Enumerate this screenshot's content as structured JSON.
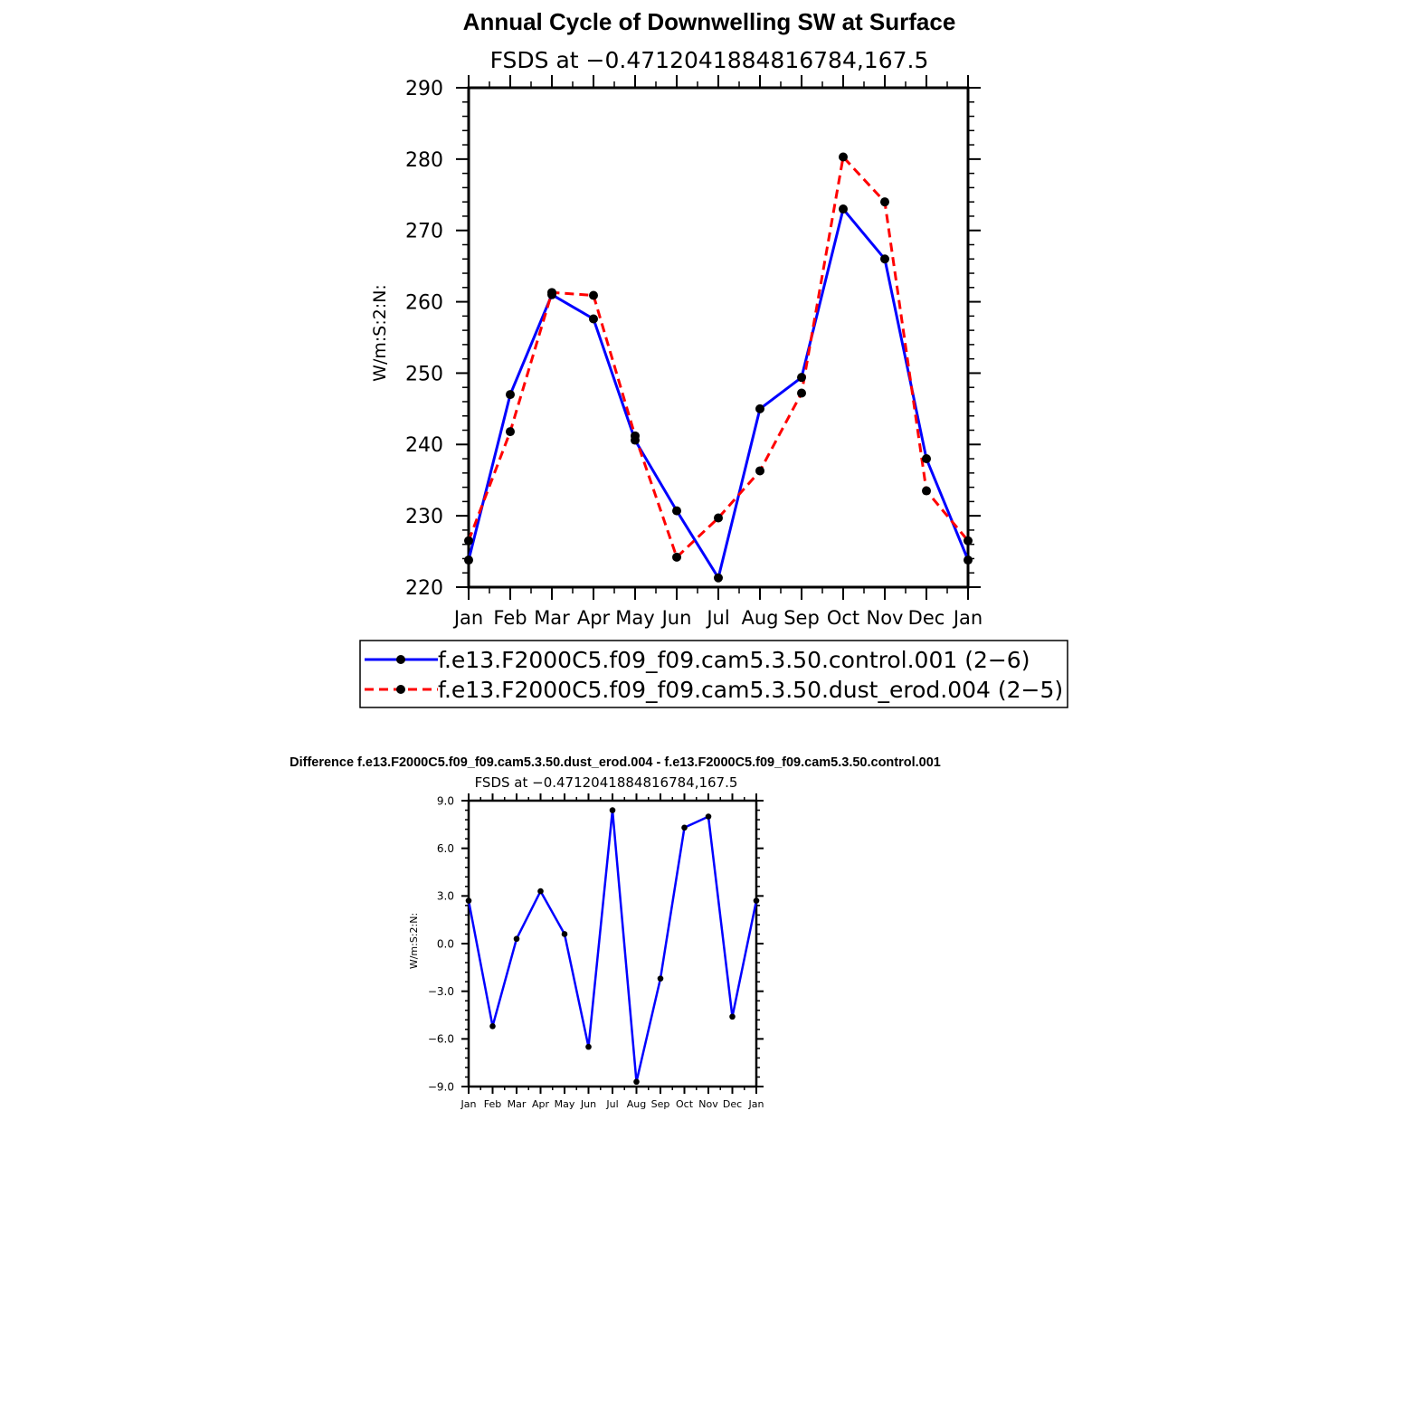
{
  "chart_data": [
    {
      "type": "line",
      "title": "Annual Cycle of Downwelling SW at Surface",
      "subtitle": "FSDS at −0.4712041884816784,167.5",
      "xlabel": "",
      "ylabel": "W/m:S:2:N:",
      "categories": [
        "Jan",
        "Feb",
        "Mar",
        "Apr",
        "May",
        "Jun",
        "Jul",
        "Aug",
        "Sep",
        "Oct",
        "Nov",
        "Dec",
        "Jan"
      ],
      "ylim": [
        220,
        290
      ],
      "yticks": [
        "220",
        "230",
        "240",
        "250",
        "260",
        "270",
        "280",
        "290"
      ],
      "series": [
        {
          "name": "f.e13.F2000C5.f09_f09.cam5.3.50.control.001 (2−6)",
          "color": "#0000ff",
          "style": "solid",
          "values": [
            223.8,
            247.0,
            261.0,
            257.6,
            240.6,
            230.7,
            221.3,
            245.0,
            249.4,
            273.0,
            266.0,
            238.0,
            223.8
          ]
        },
        {
          "name": "f.e13.F2000C5.f09_f09.cam5.3.50.dust_erod.004 (2−5)",
          "color": "#ff0000",
          "style": "dashed",
          "values": [
            226.5,
            241.8,
            261.3,
            260.9,
            241.2,
            224.2,
            229.7,
            236.3,
            247.2,
            280.3,
            274.0,
            233.5,
            226.5
          ]
        }
      ],
      "legend": "bottom"
    },
    {
      "type": "line",
      "title": "Difference f.e13.F2000C5.f09_f09.cam5.3.50.dust_erod.004 - f.e13.F2000C5.f09_f09.cam5.3.50.control.001",
      "subtitle": "FSDS at −0.4712041884816784,167.5",
      "xlabel": "",
      "ylabel": "W/m:S:2:N:",
      "categories": [
        "Jan",
        "Feb",
        "Mar",
        "Apr",
        "May",
        "Jun",
        "Jul",
        "Aug",
        "Sep",
        "Oct",
        "Nov",
        "Dec",
        "Jan"
      ],
      "ylim": [
        -9,
        9
      ],
      "yticks": [
        "−9.0",
        "−6.0",
        "−3.0",
        "0.0",
        "3.0",
        "6.0",
        "9.0"
      ],
      "series": [
        {
          "color": "#0000ff",
          "style": "solid",
          "values": [
            2.7,
            -5.2,
            0.3,
            3.3,
            0.6,
            -6.5,
            8.4,
            -8.7,
            -2.2,
            7.3,
            8.0,
            -4.6,
            2.7
          ]
        }
      ]
    }
  ]
}
